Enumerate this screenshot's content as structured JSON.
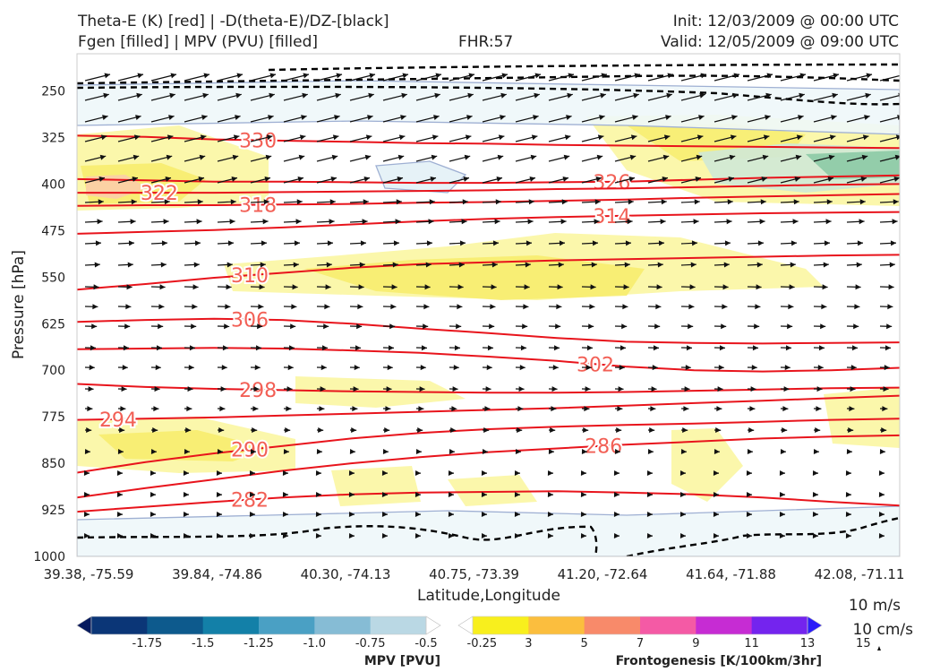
{
  "header": {
    "title_line1": "Theta-E (K) [red] | -D(theta-E)/DZ-[black]",
    "title_line2": "Fgen [filled] | MPV (PVU) [filled]",
    "fhr": "FHR:57",
    "init": "Init: 12/03/2009 @ 00:00 UTC",
    "valid": "Valid: 12/05/2009 @ 09:00 UTC"
  },
  "chart_data": {
    "type": "cross-section",
    "xlabel": "Latitude,Longitude",
    "ylabel": "Pressure [hPa]",
    "x_ticks": [
      "39.38, -75.59",
      "39.84, -74.86",
      "40.30, -74.13",
      "40.75, -73.39",
      "41.20, -72.64",
      "41.64, -71.88",
      "42.08, -71.11"
    ],
    "y_ticks": [
      250,
      325,
      400,
      475,
      550,
      625,
      700,
      775,
      850,
      925,
      1000
    ],
    "ylim": [
      1000,
      190
    ],
    "theta_e_lines": [
      {
        "label": "330",
        "p": [
          322,
          324,
          328,
          330,
          332,
          334,
          335,
          337,
          338,
          339,
          340,
          341,
          342
        ]
      },
      {
        "label": "326",
        "p": [
          392,
          394,
          396,
          396,
          397,
          398,
          398,
          397,
          396,
          393,
          390,
          388,
          386
        ]
      },
      {
        "label": "322",
        "p": [
          414,
          414,
          414,
          413,
          412,
          411,
          410,
          408,
          407,
          405,
          403,
          401,
          400
        ]
      },
      {
        "label": "318",
        "p": [
          435,
          434,
          434,
          433,
          432,
          430,
          429,
          427,
          425,
          422,
          420,
          418,
          416
        ]
      },
      {
        "label": "314",
        "p": [
          480,
          477,
          474,
          470,
          465,
          460,
          456,
          453,
          451,
          449,
          447,
          446,
          445
        ]
      },
      {
        "label": "310",
        "p": [
          570,
          561,
          551,
          543,
          535,
          529,
          526,
          523,
          521,
          519,
          517,
          515,
          514
        ]
      },
      {
        "label": "306",
        "p": [
          622,
          619,
          617,
          619,
          625,
          633,
          640,
          648,
          654,
          656,
          657,
          656,
          655
        ]
      },
      {
        "label": "302",
        "p": [
          666,
          665,
          664,
          665,
          668,
          672,
          678,
          685,
          694,
          700,
          702,
          700,
          696
        ]
      },
      {
        "label": "298",
        "p": [
          722,
          727,
          730,
          732,
          734,
          735,
          736,
          736,
          735,
          733,
          731,
          729,
          728
        ]
      },
      {
        "label": "294",
        "p": [
          780,
          778,
          776,
          773,
          770,
          767,
          764,
          761,
          757,
          753,
          749,
          745,
          741
        ]
      },
      {
        "label": "290",
        "p": [
          865,
          848,
          834,
          822,
          810,
          801,
          795,
          791,
          788,
          786,
          783,
          780,
          778
        ]
      },
      {
        "label": "286",
        "p": [
          905,
          890,
          876,
          862,
          850,
          840,
          832,
          826,
          820,
          815,
          810,
          807,
          805
        ]
      },
      {
        "label": "282",
        "p": [
          928,
          920,
          912,
          905,
          900,
          897,
          896,
          895,
          897,
          900,
          905,
          912,
          918
        ]
      }
    ],
    "wind_scale": {
      "label1": "10 m/s",
      "label2": "10 cm/s"
    },
    "colorbars": [
      {
        "name": "MPV [PVU]",
        "ticks": [
          "-1.75",
          "-1.5",
          "-1.25",
          "-1.0",
          "-0.75",
          "-0.5",
          "-0.25"
        ],
        "colors": [
          "#061a5e",
          "#0b3677",
          "#0d5a8d",
          "#1380a8",
          "#4aa0c4",
          "#86bcd5",
          "#bad8e4",
          "#ffffff"
        ]
      },
      {
        "name": "Frontogenesis [K/100km/3hr]",
        "ticks": [
          "3",
          "5",
          "7",
          "9",
          "11",
          "13",
          "15"
        ],
        "colors": [
          "#ffffff",
          "#f8ef1d",
          "#fbbe3e",
          "#f88a6a",
          "#f45aa5",
          "#c62cd3",
          "#7424ee",
          "#2b1cf9"
        ]
      }
    ],
    "grid": false,
    "legend": "bottom"
  }
}
